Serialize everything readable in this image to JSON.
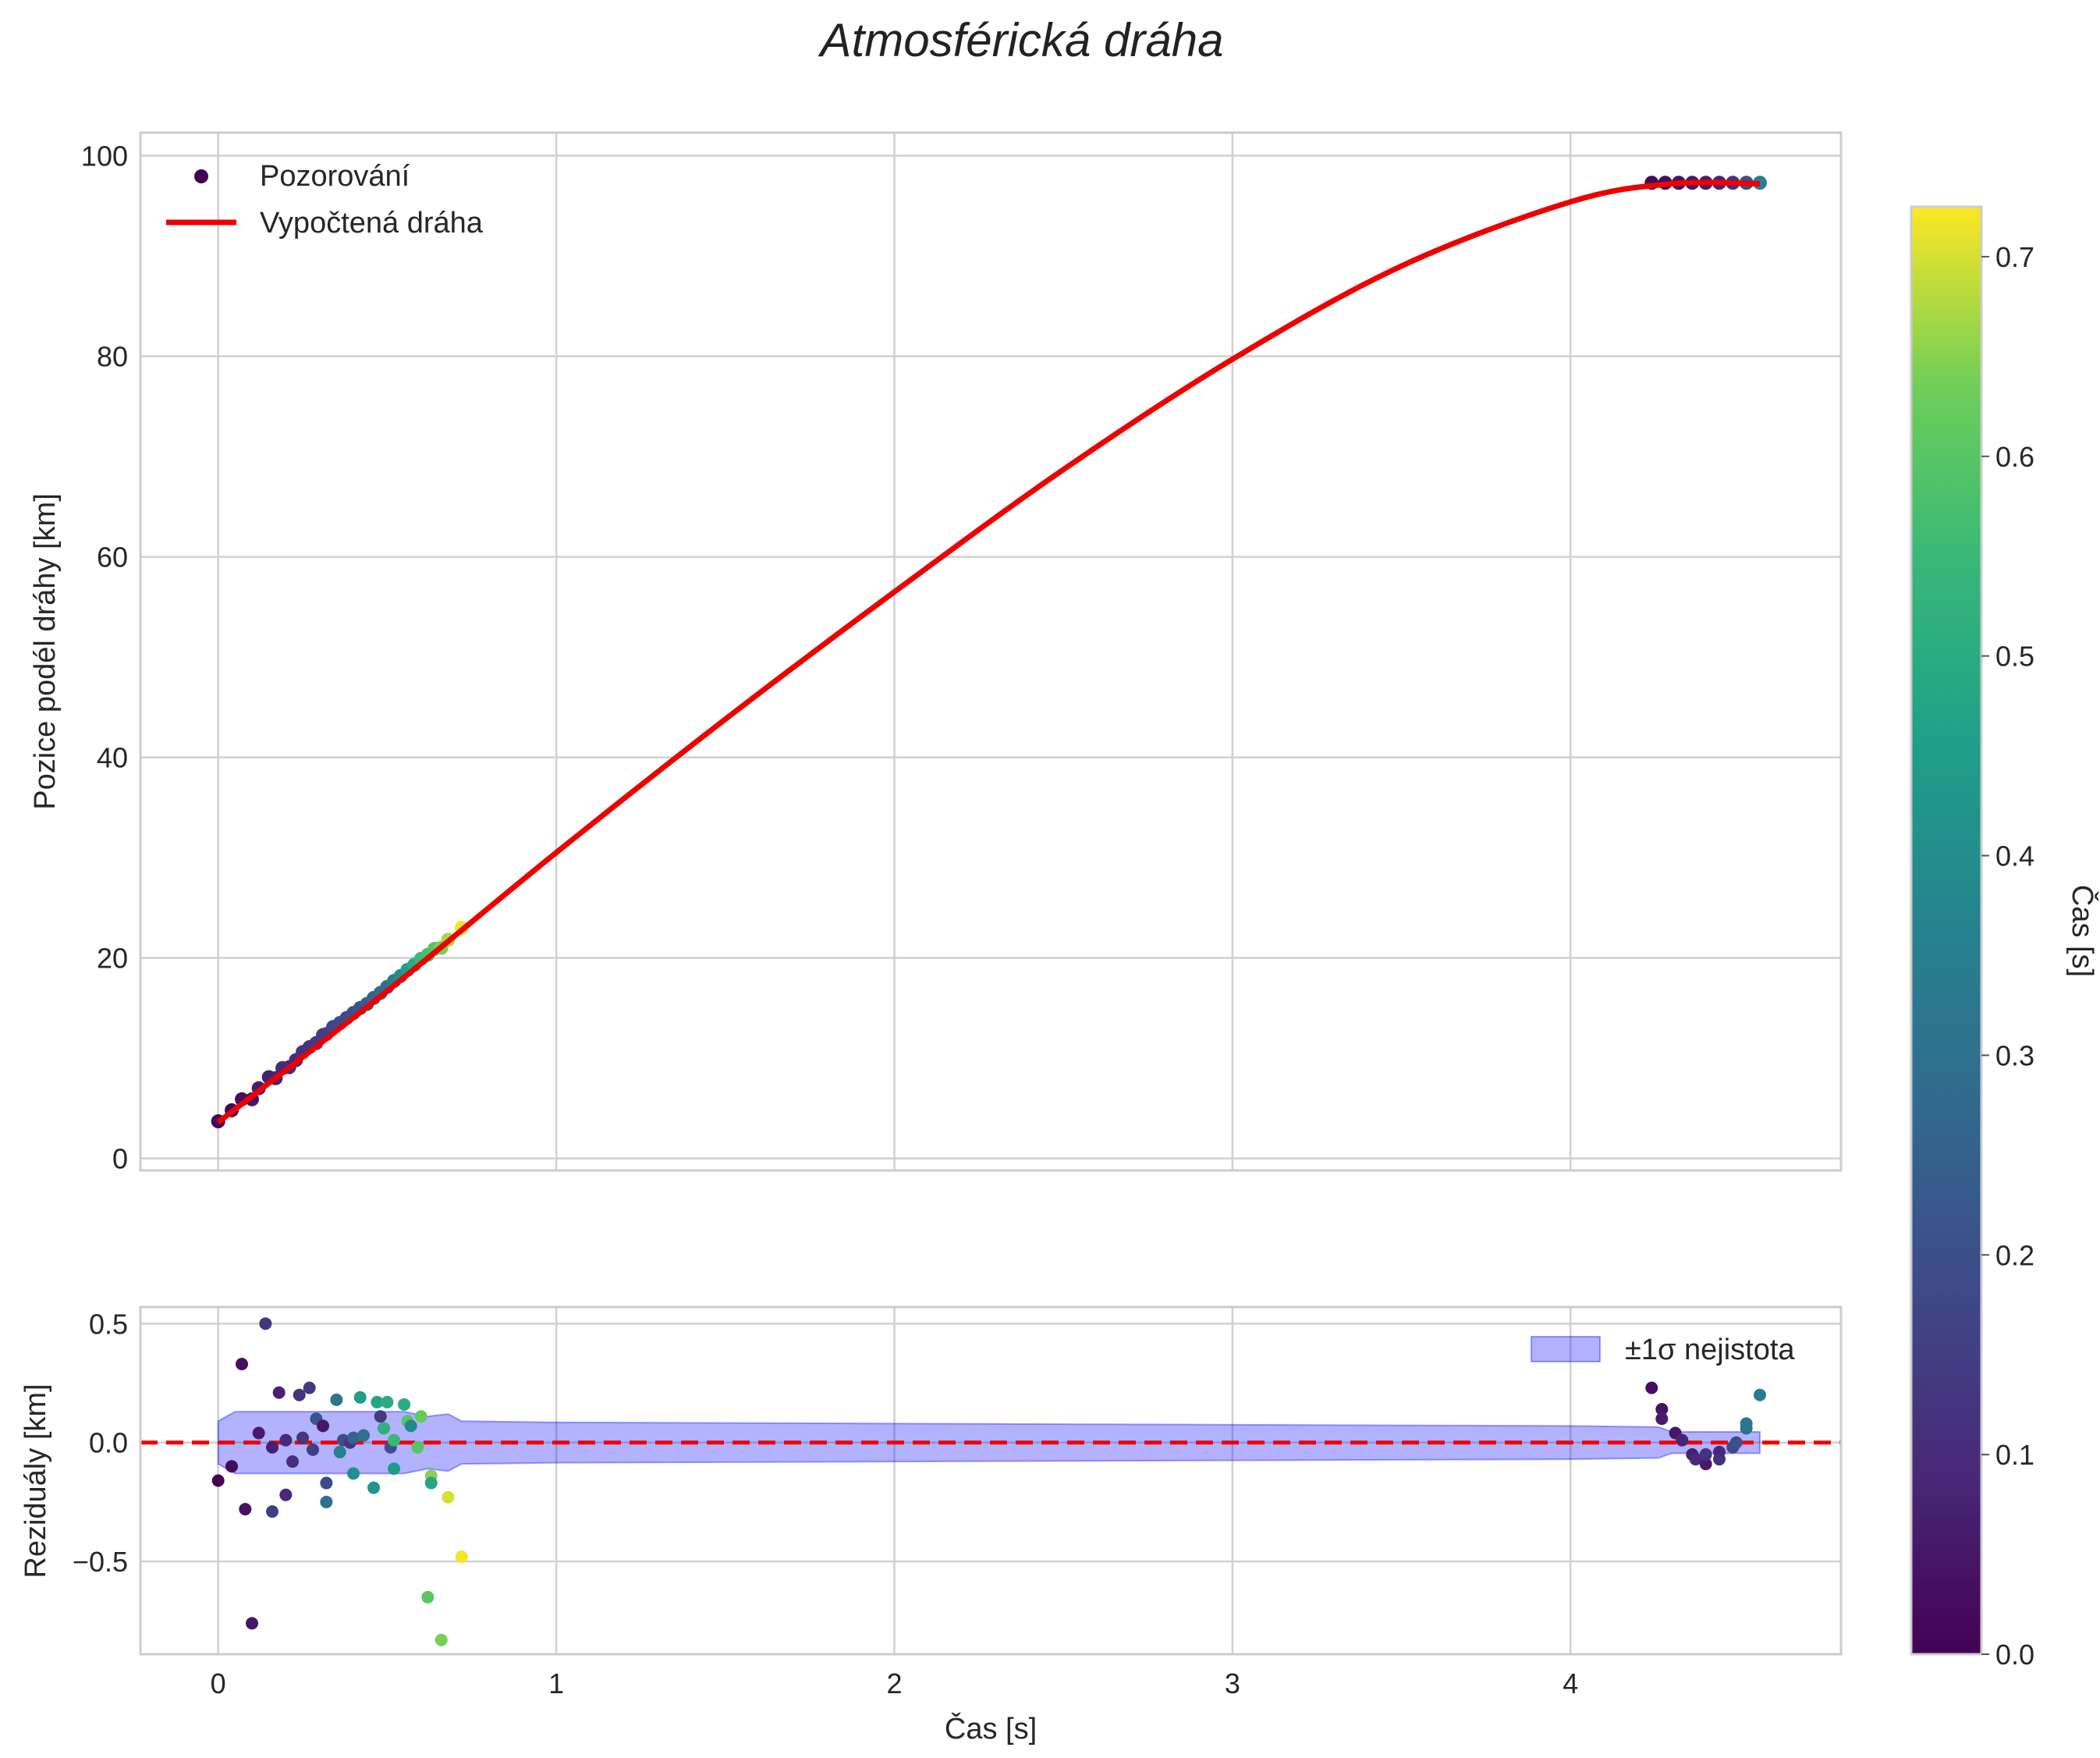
{
  "figure": {
    "title": "Atmosférická dráha",
    "xlabel": "Čas [s]",
    "colorbar_label": "Čas [s]"
  },
  "chart_data": [
    {
      "type": "scatter",
      "panel": "top",
      "title": "Atmosférická dráha",
      "xlabel": "",
      "ylabel": "Pozice podél dráhy [km]",
      "xlim": [
        -0.23,
        4.8
      ],
      "ylim": [
        -1.2,
        102.3
      ],
      "x_ticks": [
        0,
        1,
        2,
        3,
        4
      ],
      "y_ticks": [
        0,
        20,
        40,
        60,
        80,
        100
      ],
      "y_tick_labels": [
        "0",
        "20",
        "40",
        "60",
        "80",
        "100"
      ],
      "grid": true,
      "legend": {
        "location": "upper left",
        "entries": [
          "Pozorování",
          "Vypočtená dráha"
        ]
      },
      "series": [
        {
          "name": "Pozorování",
          "kind": "scatter",
          "colormap": "viridis",
          "points": [
            {
              "x": 0.0,
              "y": 3.7,
              "c": 0.0
            },
            {
              "x": 0.04,
              "y": 4.8,
              "c": 0.02
            },
            {
              "x": 0.07,
              "y": 5.9,
              "c": 0.03
            },
            {
              "x": 0.1,
              "y": 5.9,
              "c": 0.05
            },
            {
              "x": 0.12,
              "y": 7.0,
              "c": 0.06
            },
            {
              "x": 0.15,
              "y": 8.1,
              "c": 0.07
            },
            {
              "x": 0.17,
              "y": 8.0,
              "c": 0.08
            },
            {
              "x": 0.19,
              "y": 9.0,
              "c": 0.09
            },
            {
              "x": 0.21,
              "y": 9.1,
              "c": 0.1
            },
            {
              "x": 0.23,
              "y": 9.8,
              "c": 0.11
            },
            {
              "x": 0.25,
              "y": 10.6,
              "c": 0.12
            },
            {
              "x": 0.27,
              "y": 11.1,
              "c": 0.13
            },
            {
              "x": 0.29,
              "y": 11.5,
              "c": 0.14
            },
            {
              "x": 0.31,
              "y": 12.3,
              "c": 0.15
            },
            {
              "x": 0.32,
              "y": 12.4,
              "c": 0.16
            },
            {
              "x": 0.34,
              "y": 13.1,
              "c": 0.17
            },
            {
              "x": 0.36,
              "y": 13.5,
              "c": 0.18
            },
            {
              "x": 0.38,
              "y": 14.0,
              "c": 0.19
            },
            {
              "x": 0.4,
              "y": 14.5,
              "c": 0.2
            },
            {
              "x": 0.42,
              "y": 15.0,
              "c": 0.22
            },
            {
              "x": 0.44,
              "y": 15.4,
              "c": 0.24
            },
            {
              "x": 0.46,
              "y": 16.0,
              "c": 0.26
            },
            {
              "x": 0.48,
              "y": 16.5,
              "c": 0.28
            },
            {
              "x": 0.5,
              "y": 17.1,
              "c": 0.3
            },
            {
              "x": 0.52,
              "y": 17.7,
              "c": 0.36
            },
            {
              "x": 0.54,
              "y": 18.2,
              "c": 0.4
            },
            {
              "x": 0.56,
              "y": 18.8,
              "c": 0.45
            },
            {
              "x": 0.58,
              "y": 19.3,
              "c": 0.5
            },
            {
              "x": 0.6,
              "y": 19.9,
              "c": 0.55
            },
            {
              "x": 0.62,
              "y": 20.3,
              "c": 0.57
            },
            {
              "x": 0.64,
              "y": 20.9,
              "c": 0.6
            },
            {
              "x": 0.66,
              "y": 21.0,
              "c": 0.64
            },
            {
              "x": 0.68,
              "y": 21.8,
              "c": 0.67
            },
            {
              "x": 0.72,
              "y": 23.0,
              "c": 0.72
            },
            {
              "x": 4.24,
              "y": 97.3,
              "c": 0.02
            },
            {
              "x": 4.28,
              "y": 97.3,
              "c": 0.03
            },
            {
              "x": 4.32,
              "y": 97.3,
              "c": 0.04
            },
            {
              "x": 4.36,
              "y": 97.3,
              "c": 0.05
            },
            {
              "x": 4.4,
              "y": 97.3,
              "c": 0.06
            },
            {
              "x": 4.44,
              "y": 97.3,
              "c": 0.08
            },
            {
              "x": 4.48,
              "y": 97.3,
              "c": 0.12
            },
            {
              "x": 4.52,
              "y": 97.3,
              "c": 0.2
            },
            {
              "x": 4.56,
              "y": 97.3,
              "c": 0.35
            }
          ]
        },
        {
          "name": "Vypočtená dráha",
          "kind": "line",
          "color": "#ee0000",
          "points": [
            {
              "x": 0.0,
              "y": 3.6
            },
            {
              "x": 0.5,
              "y": 16.7
            },
            {
              "x": 1.0,
              "y": 30.5
            },
            {
              "x": 1.5,
              "y": 43.8
            },
            {
              "x": 2.0,
              "y": 56.5
            },
            {
              "x": 2.5,
              "y": 68.7
            },
            {
              "x": 3.0,
              "y": 79.7
            },
            {
              "x": 3.5,
              "y": 89.0
            },
            {
              "x": 4.0,
              "y": 95.4
            },
            {
              "x": 4.3,
              "y": 97.2
            },
            {
              "x": 4.56,
              "y": 97.2
            }
          ]
        }
      ]
    },
    {
      "type": "scatter",
      "panel": "bottom",
      "xlabel": "Čas [s]",
      "ylabel": "Reziduály [km]",
      "xlim": [
        -0.23,
        4.8
      ],
      "ylim": [
        -0.89,
        0.57
      ],
      "x_ticks": [
        0,
        1,
        2,
        3,
        4
      ],
      "x_tick_labels": [
        "0",
        "1",
        "2",
        "3",
        "4"
      ],
      "y_ticks": [
        -0.5,
        0.0,
        0.5
      ],
      "y_tick_labels": [
        "−0.5",
        "0.0",
        "0.5"
      ],
      "grid": true,
      "zero_line": {
        "y": 0,
        "color": "#ee0000",
        "style": "dashed"
      },
      "legend": {
        "location": "upper right",
        "entries": [
          "±1σ nejistota"
        ]
      },
      "band": {
        "name": "±1σ nejistota",
        "color": "#0000ff",
        "opacity": 0.3,
        "upper": [
          {
            "x": 0.0,
            "y": 0.09
          },
          {
            "x": 0.05,
            "y": 0.13
          },
          {
            "x": 0.15,
            "y": 0.13
          },
          {
            "x": 0.3,
            "y": 0.13
          },
          {
            "x": 0.55,
            "y": 0.13
          },
          {
            "x": 0.62,
            "y": 0.11
          },
          {
            "x": 0.68,
            "y": 0.12
          },
          {
            "x": 0.72,
            "y": 0.09
          },
          {
            "x": 1.0,
            "y": 0.085
          },
          {
            "x": 2.0,
            "y": 0.08
          },
          {
            "x": 3.0,
            "y": 0.075
          },
          {
            "x": 4.0,
            "y": 0.07
          },
          {
            "x": 4.26,
            "y": 0.065
          },
          {
            "x": 4.3,
            "y": 0.045
          },
          {
            "x": 4.56,
            "y": 0.045
          }
        ],
        "lower": [
          {
            "x": 0.0,
            "y": -0.09
          },
          {
            "x": 0.05,
            "y": -0.13
          },
          {
            "x": 0.15,
            "y": -0.13
          },
          {
            "x": 0.3,
            "y": -0.13
          },
          {
            "x": 0.55,
            "y": -0.13
          },
          {
            "x": 0.62,
            "y": -0.11
          },
          {
            "x": 0.68,
            "y": -0.12
          },
          {
            "x": 0.72,
            "y": -0.09
          },
          {
            "x": 1.0,
            "y": -0.085
          },
          {
            "x": 2.0,
            "y": -0.08
          },
          {
            "x": 3.0,
            "y": -0.075
          },
          {
            "x": 4.0,
            "y": -0.07
          },
          {
            "x": 4.26,
            "y": -0.065
          },
          {
            "x": 4.3,
            "y": -0.045
          },
          {
            "x": 4.56,
            "y": -0.045
          }
        ]
      },
      "points": [
        {
          "x": 0.0,
          "y": -0.16,
          "c": 0.0
        },
        {
          "x": 0.04,
          "y": -0.1,
          "c": 0.02
        },
        {
          "x": 0.07,
          "y": 0.33,
          "c": 0.03
        },
        {
          "x": 0.08,
          "y": -0.28,
          "c": 0.04
        },
        {
          "x": 0.1,
          "y": -0.76,
          "c": 0.05
        },
        {
          "x": 0.12,
          "y": 0.04,
          "c": 0.06
        },
        {
          "x": 0.14,
          "y": 0.5,
          "c": 0.13
        },
        {
          "x": 0.16,
          "y": -0.02,
          "c": 0.07
        },
        {
          "x": 0.16,
          "y": -0.29,
          "c": 0.15
        },
        {
          "x": 0.18,
          "y": 0.21,
          "c": 0.08
        },
        {
          "x": 0.2,
          "y": -0.22,
          "c": 0.09
        },
        {
          "x": 0.2,
          "y": 0.01,
          "c": 0.1
        },
        {
          "x": 0.22,
          "y": -0.08,
          "c": 0.11
        },
        {
          "x": 0.24,
          "y": 0.2,
          "c": 0.12
        },
        {
          "x": 0.25,
          "y": 0.02,
          "c": 0.13
        },
        {
          "x": 0.27,
          "y": 0.23,
          "c": 0.14
        },
        {
          "x": 0.28,
          "y": -0.03,
          "c": 0.15
        },
        {
          "x": 0.29,
          "y": 0.1,
          "c": 0.22
        },
        {
          "x": 0.31,
          "y": 0.07,
          "c": 0.05
        },
        {
          "x": 0.32,
          "y": -0.17,
          "c": 0.18
        },
        {
          "x": 0.32,
          "y": -0.25,
          "c": 0.3
        },
        {
          "x": 0.35,
          "y": 0.18,
          "c": 0.32
        },
        {
          "x": 0.36,
          "y": -0.04,
          "c": 0.36
        },
        {
          "x": 0.37,
          "y": 0.01,
          "c": 0.2
        },
        {
          "x": 0.39,
          "y": 0.0,
          "c": 0.12
        },
        {
          "x": 0.4,
          "y": 0.02,
          "c": 0.26
        },
        {
          "x": 0.4,
          "y": -0.13,
          "c": 0.4
        },
        {
          "x": 0.42,
          "y": 0.19,
          "c": 0.45
        },
        {
          "x": 0.43,
          "y": 0.03,
          "c": 0.3
        },
        {
          "x": 0.46,
          "y": -0.19,
          "c": 0.42
        },
        {
          "x": 0.47,
          "y": 0.17,
          "c": 0.48
        },
        {
          "x": 0.48,
          "y": 0.11,
          "c": 0.14
        },
        {
          "x": 0.49,
          "y": 0.06,
          "c": 0.52
        },
        {
          "x": 0.5,
          "y": 0.17,
          "c": 0.5
        },
        {
          "x": 0.51,
          "y": -0.02,
          "c": 0.2
        },
        {
          "x": 0.52,
          "y": 0.01,
          "c": 0.55
        },
        {
          "x": 0.52,
          "y": -0.11,
          "c": 0.45
        },
        {
          "x": 0.55,
          "y": 0.16,
          "c": 0.5
        },
        {
          "x": 0.56,
          "y": 0.09,
          "c": 0.6
        },
        {
          "x": 0.57,
          "y": 0.07,
          "c": 0.38
        },
        {
          "x": 0.59,
          "y": -0.02,
          "c": 0.6
        },
        {
          "x": 0.6,
          "y": 0.11,
          "c": 0.62
        },
        {
          "x": 0.62,
          "y": -0.65,
          "c": 0.6
        },
        {
          "x": 0.63,
          "y": -0.14,
          "c": 0.65
        },
        {
          "x": 0.63,
          "y": -0.17,
          "c": 0.48
        },
        {
          "x": 0.66,
          "y": -0.83,
          "c": 0.64
        },
        {
          "x": 0.68,
          "y": -0.23,
          "c": 0.7
        },
        {
          "x": 0.72,
          "y": -0.48,
          "c": 0.72
        },
        {
          "x": 4.24,
          "y": 0.23,
          "c": 0.03
        },
        {
          "x": 4.27,
          "y": 0.14,
          "c": 0.04
        },
        {
          "x": 4.27,
          "y": 0.1,
          "c": 0.06
        },
        {
          "x": 4.31,
          "y": 0.04,
          "c": 0.05
        },
        {
          "x": 4.33,
          "y": 0.01,
          "c": 0.08
        },
        {
          "x": 4.36,
          "y": -0.05,
          "c": 0.07
        },
        {
          "x": 4.37,
          "y": -0.07,
          "c": 0.1
        },
        {
          "x": 4.4,
          "y": -0.09,
          "c": 0.06
        },
        {
          "x": 4.4,
          "y": -0.05,
          "c": 0.12
        },
        {
          "x": 4.44,
          "y": -0.04,
          "c": 0.09
        },
        {
          "x": 4.44,
          "y": -0.07,
          "c": 0.11
        },
        {
          "x": 4.48,
          "y": -0.02,
          "c": 0.18
        },
        {
          "x": 4.49,
          "y": 0.0,
          "c": 0.2
        },
        {
          "x": 4.52,
          "y": 0.06,
          "c": 0.3
        },
        {
          "x": 4.52,
          "y": 0.08,
          "c": 0.32
        },
        {
          "x": 4.56,
          "y": 0.2,
          "c": 0.34
        }
      ]
    },
    {
      "type": "colorbar",
      "label": "Čas [s]",
      "colormap": "viridis",
      "range": [
        0.0,
        0.725
      ],
      "ticks": [
        0.0,
        0.1,
        0.2,
        0.3,
        0.4,
        0.5,
        0.6,
        0.7
      ],
      "tick_labels": [
        "0.0",
        "0.1",
        "0.2",
        "0.3",
        "0.4",
        "0.5",
        "0.6",
        "0.7"
      ]
    }
  ]
}
